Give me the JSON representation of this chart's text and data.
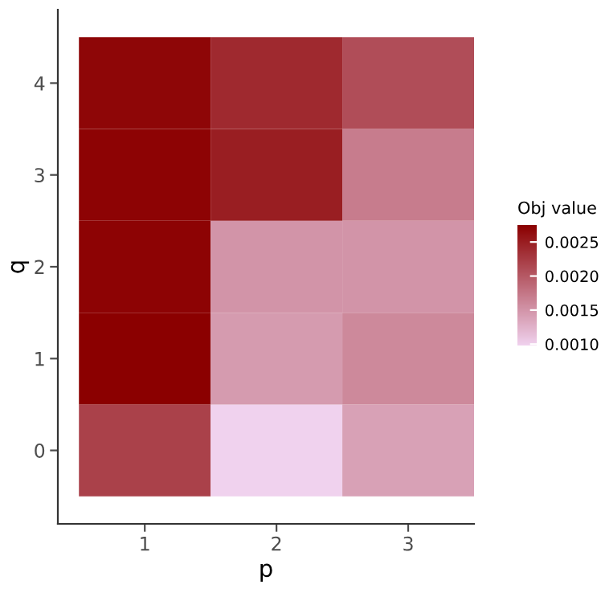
{
  "chart_data": {
    "type": "heatmap",
    "xlabel": "p",
    "ylabel": "q",
    "clabel": "Obj value",
    "categories": [
      "1",
      "2",
      "3"
    ],
    "y_categories": [
      "4",
      "3",
      "2",
      "1",
      "0"
    ],
    "cells": [
      [
        0.0027,
        0.0024,
        0.0021
      ],
      [
        0.00272,
        0.0025,
        0.0017
      ],
      [
        0.00272,
        0.0015,
        0.0015
      ],
      [
        0.00275,
        0.00145,
        0.0016
      ],
      [
        0.0022,
        0.00098,
        0.0014
      ]
    ],
    "clim": [
      0.00098,
      0.00275
    ],
    "cticks": [
      {
        "value": 0.001,
        "label": "0.0010"
      },
      {
        "value": 0.0015,
        "label": "0.0015"
      },
      {
        "value": 0.002,
        "label": "0.0020"
      },
      {
        "value": 0.0025,
        "label": "0.0025"
      }
    ],
    "colors": [
      "#f0d2ee",
      "#8b0000"
    ],
    "grid": false
  }
}
